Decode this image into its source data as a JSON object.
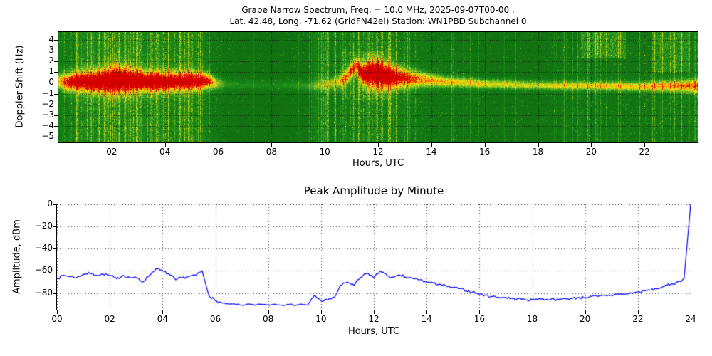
{
  "chart_data": [
    {
      "type": "heatmap",
      "title_line1": "Grape Narrow Spectrum, Freq. = 10.0 MHz, 2025-09-07T00-00 ,",
      "title_line2": "Lat. 42.48, Long. -71.62 (GridFN42el) Station: WN1PBD Subchannel 0",
      "xlabel": "Hours, UTC",
      "ylabel": "Doppler Shift (Hz)",
      "xlim": [
        0,
        24
      ],
      "ylim": [
        -5.5,
        4.7
      ],
      "yticks": [
        4,
        3,
        2,
        1,
        0,
        -1,
        -2,
        -3,
        -4,
        -5
      ],
      "xticks": [
        2,
        4,
        6,
        8,
        10,
        12,
        14,
        16,
        18,
        20,
        22
      ],
      "colormap": "green-yellow-red spectral intensity",
      "seed": 42,
      "colormap_stops": [
        [
          0.0,
          8,
          80,
          8
        ],
        [
          0.35,
          26,
          140,
          26
        ],
        [
          0.55,
          120,
          190,
          40
        ],
        [
          0.7,
          230,
          230,
          20
        ],
        [
          0.8,
          255,
          200,
          0
        ],
        [
          0.88,
          255,
          120,
          0
        ],
        [
          1.0,
          215,
          0,
          0
        ]
      ],
      "carrier_keyframes": [
        [
          0.0,
          0.15,
          0.5,
          0.5
        ],
        [
          0.4,
          0.1,
          0.6,
          0.8
        ],
        [
          1.0,
          0.2,
          0.7,
          0.9
        ],
        [
          1.8,
          0.15,
          0.8,
          0.95
        ],
        [
          2.2,
          0.3,
          0.9,
          1.0
        ],
        [
          3.0,
          0.2,
          0.7,
          0.9
        ],
        [
          4.0,
          0.15,
          0.65,
          0.88
        ],
        [
          5.0,
          0.2,
          0.6,
          0.85
        ],
        [
          5.6,
          0.2,
          0.5,
          0.8
        ],
        [
          5.9,
          0.0,
          0.4,
          0.45
        ],
        [
          6.3,
          -0.1,
          0.3,
          0.18
        ],
        [
          8.0,
          -0.15,
          0.3,
          0.12
        ],
        [
          9.4,
          -0.2,
          0.3,
          0.2
        ],
        [
          10.2,
          -0.1,
          0.4,
          0.35
        ],
        [
          10.7,
          0.3,
          0.5,
          0.5
        ],
        [
          11.0,
          1.2,
          0.5,
          0.6
        ],
        [
          11.2,
          1.6,
          0.5,
          0.6
        ],
        [
          11.4,
          0.8,
          0.7,
          0.8
        ],
        [
          11.8,
          0.9,
          0.9,
          0.95
        ],
        [
          12.2,
          0.7,
          0.85,
          0.95
        ],
        [
          12.8,
          0.5,
          0.7,
          0.8
        ],
        [
          13.5,
          0.35,
          0.5,
          0.65
        ],
        [
          14.5,
          0.15,
          0.35,
          0.55
        ],
        [
          16.0,
          -0.05,
          0.3,
          0.5
        ],
        [
          18.0,
          -0.2,
          0.28,
          0.45
        ],
        [
          20.0,
          -0.25,
          0.28,
          0.5
        ],
        [
          22.0,
          -0.3,
          0.3,
          0.55
        ],
        [
          23.0,
          -0.25,
          0.35,
          0.6
        ],
        [
          24.0,
          -0.3,
          0.45,
          0.65
        ]
      ],
      "noise_keyframes": [
        [
          0,
          0.55
        ],
        [
          0.5,
          0.65
        ],
        [
          1,
          0.7
        ],
        [
          2,
          0.75
        ],
        [
          3,
          0.72
        ],
        [
          4,
          0.75
        ],
        [
          5,
          0.7
        ],
        [
          5.7,
          0.55
        ],
        [
          6.3,
          0.28
        ],
        [
          7,
          0.22
        ],
        [
          8,
          0.2
        ],
        [
          9.2,
          0.28
        ],
        [
          9.7,
          0.45
        ],
        [
          10.4,
          0.55
        ],
        [
          11,
          0.7
        ],
        [
          11.8,
          0.78
        ],
        [
          12.5,
          0.7
        ],
        [
          13.2,
          0.55
        ],
        [
          14,
          0.45
        ],
        [
          15,
          0.35
        ],
        [
          16,
          0.3
        ],
        [
          17,
          0.28
        ],
        [
          18,
          0.3
        ],
        [
          19,
          0.35
        ],
        [
          19.8,
          0.45
        ],
        [
          20.8,
          0.42
        ],
        [
          21.8,
          0.38
        ],
        [
          22.5,
          0.5
        ],
        [
          23.3,
          0.55
        ],
        [
          24,
          0.5
        ]
      ],
      "streak_keyframes": [
        [
          0,
          0.08
        ],
        [
          0.7,
          0.3
        ],
        [
          1.5,
          0.38
        ],
        [
          2.5,
          0.4
        ],
        [
          3.5,
          0.42
        ],
        [
          4.6,
          0.45
        ],
        [
          5.4,
          0.3
        ],
        [
          6,
          0.05
        ],
        [
          7,
          0.02
        ],
        [
          9,
          0.03
        ],
        [
          9.7,
          0.18
        ],
        [
          10.3,
          0.22
        ],
        [
          11,
          0.35
        ],
        [
          11.9,
          0.35
        ],
        [
          12.6,
          0.22
        ],
        [
          13.5,
          0.12
        ],
        [
          14.5,
          0.07
        ],
        [
          16,
          0.04
        ],
        [
          18,
          0.04
        ],
        [
          19.5,
          0.12
        ],
        [
          20.5,
          0.1
        ],
        [
          21.5,
          0.08
        ],
        [
          22.3,
          0.15
        ],
        [
          23.2,
          0.25
        ],
        [
          24,
          0.18
        ]
      ],
      "blobs": [
        [
          19.6,
          21.3,
          2.3,
          4.7,
          0.28
        ],
        [
          22.3,
          23.7,
          1.0,
          4.7,
          0.22
        ],
        [
          9.55,
          10.15,
          -5.5,
          4.7,
          0.12
        ],
        [
          0.6,
          5.6,
          -5.5,
          4.7,
          0.06
        ],
        [
          10.6,
          12.4,
          -1.5,
          3.0,
          0.12
        ]
      ]
    },
    {
      "type": "line",
      "title": "Peak Amplitude by Minute",
      "xlabel": "Hours, UTC",
      "ylabel": "Amplitude, dBm",
      "xlim": [
        0,
        24
      ],
      "ylim": [
        -95,
        0
      ],
      "yticks": [
        0,
        -20,
        -40,
        -60,
        -80
      ],
      "xticks": [
        0,
        2,
        4,
        6,
        8,
        10,
        12,
        14,
        16,
        18,
        20,
        22,
        24
      ],
      "color": "#0000ff",
      "x_step_hours": 0.25,
      "jitter_db": 1.3,
      "seed": 7,
      "values": [
        -67,
        -64,
        -65,
        -66,
        -63,
        -62,
        -64,
        -63,
        -64,
        -67,
        -64,
        -66,
        -66,
        -70,
        -64,
        -58,
        -60,
        -63,
        -68,
        -66,
        -65,
        -64,
        -60,
        -82,
        -87,
        -89,
        -90,
        -90,
        -91,
        -90,
        -91,
        -90,
        -91,
        -90,
        -91,
        -90,
        -91,
        -90,
        -91,
        -82,
        -87,
        -86,
        -84,
        -73,
        -70,
        -73,
        -66,
        -62,
        -66,
        -60,
        -64,
        -66,
        -64,
        -66,
        -67,
        -68,
        -70,
        -71,
        -72,
        -74,
        -75,
        -76,
        -78,
        -79,
        -81,
        -82,
        -83,
        -84,
        -84,
        -85,
        -85,
        -86,
        -86,
        -85,
        -86,
        -85,
        -86,
        -85,
        -85,
        -84,
        -84,
        -83,
        -83,
        -82,
        -82,
        -81,
        -81,
        -80,
        -79,
        -78,
        -77,
        -76,
        -74,
        -72,
        -70,
        -67,
        0
      ]
    }
  ]
}
